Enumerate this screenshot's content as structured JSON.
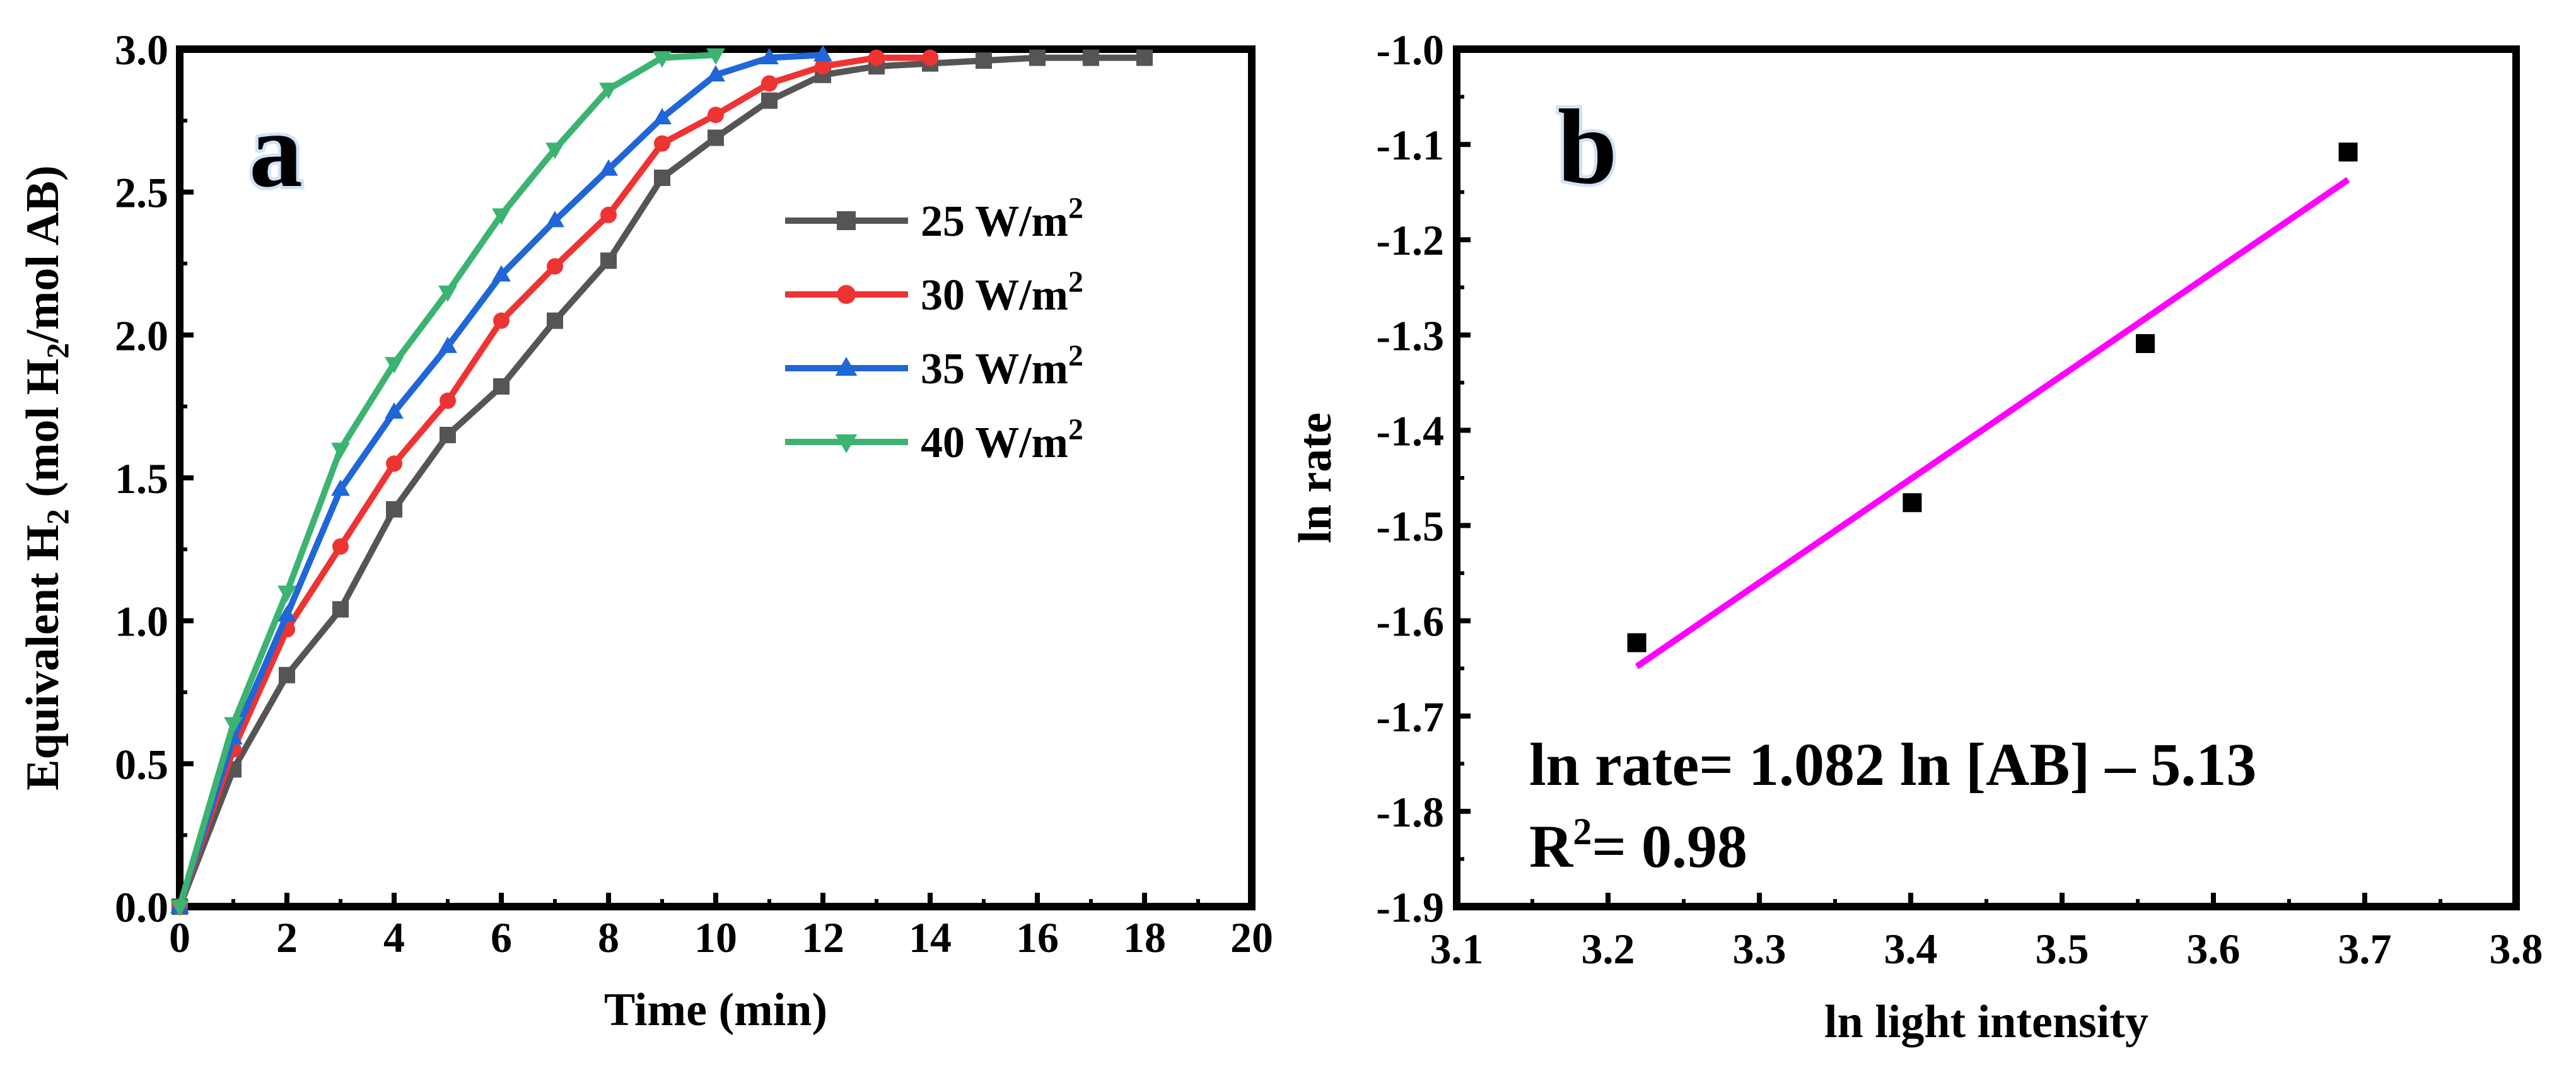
{
  "chart_data": [
    {
      "type": "line",
      "panel_label": "a",
      "xlabel": "Time (min)",
      "ylabel": {
        "prefix": "Equivalent H",
        "sub1": "2",
        "middle": " (mol H",
        "sub2": "2",
        "suffix": "/mol AB)"
      },
      "xlim": [
        0,
        20
      ],
      "ylim": [
        0,
        3.0
      ],
      "xticks": [
        "0",
        "2",
        "4",
        "6",
        "8",
        "10",
        "12",
        "14",
        "16",
        "18",
        "20"
      ],
      "yticks": [
        "0.0",
        "0.5",
        "1.0",
        "1.5",
        "2.0",
        "2.5",
        "3.0"
      ],
      "legend_unit_base": "W/m",
      "legend_unit_sup": "2",
      "series": [
        {
          "name": "25",
          "color": "#555555",
          "marker": "square",
          "x": [
            0,
            1,
            2,
            3,
            4,
            5,
            6,
            7,
            8,
            9,
            10,
            11,
            12,
            13,
            14,
            15,
            16,
            17,
            18
          ],
          "y": [
            0,
            0.48,
            0.81,
            1.04,
            1.39,
            1.65,
            1.82,
            2.05,
            2.26,
            2.55,
            2.69,
            2.82,
            2.91,
            2.94,
            2.95,
            2.96,
            2.97,
            2.97,
            2.97
          ]
        },
        {
          "name": "30",
          "color": "#ee3333",
          "marker": "circle",
          "x": [
            0,
            1,
            2,
            3,
            4,
            5,
            6,
            7,
            8,
            9,
            10,
            11,
            12,
            13,
            14
          ],
          "y": [
            0,
            0.55,
            0.97,
            1.26,
            1.55,
            1.77,
            2.05,
            2.24,
            2.42,
            2.67,
            2.77,
            2.88,
            2.94,
            2.97,
            2.97
          ]
        },
        {
          "name": "35",
          "color": "#1f66d8",
          "marker": "triangle-up",
          "x": [
            0,
            1,
            2,
            3,
            4,
            5,
            6,
            7,
            8,
            9,
            10,
            11,
            12
          ],
          "y": [
            0,
            0.59,
            1.02,
            1.46,
            1.73,
            1.96,
            2.21,
            2.4,
            2.58,
            2.76,
            2.91,
            2.97,
            2.98
          ]
        },
        {
          "name": "40",
          "color": "#3cb371",
          "marker": "triangle-down",
          "x": [
            0,
            1,
            2,
            3,
            4,
            5,
            6,
            7,
            8,
            9,
            10
          ],
          "y": [
            0,
            0.64,
            1.1,
            1.6,
            1.9,
            2.15,
            2.42,
            2.65,
            2.86,
            2.97,
            2.98
          ]
        }
      ]
    },
    {
      "type": "scatter",
      "panel_label": "b",
      "xlabel": "ln light intensity",
      "ylabel": "ln rate",
      "xlim": [
        3.1,
        3.8
      ],
      "ylim": [
        -1.9,
        -1.0
      ],
      "xticks": [
        "3.1",
        "3.2",
        "3.3",
        "3.4",
        "3.5",
        "3.6",
        "3.7",
        "3.8"
      ],
      "yticks": [
        "-1.0",
        "-1.1",
        "-1.2",
        "-1.3",
        "-1.4",
        "-1.5",
        "-1.6",
        "-1.7",
        "-1.8",
        "-1.9"
      ],
      "points": {
        "x": [
          3.219,
          3.401,
          3.555,
          3.689
        ],
        "y": [
          -1.623,
          -1.476,
          -1.309,
          -1.108
        ]
      },
      "fit": {
        "x": [
          3.219,
          3.689
        ],
        "y": [
          -1.648,
          -1.137
        ],
        "color": "#ff00ff"
      },
      "equation_line1": "ln rate= 1.082 ln [AB] – 5.13",
      "equation_line2_prefix": "R",
      "equation_line2_sup": "2",
      "equation_line2_suffix": "= 0.98"
    }
  ]
}
